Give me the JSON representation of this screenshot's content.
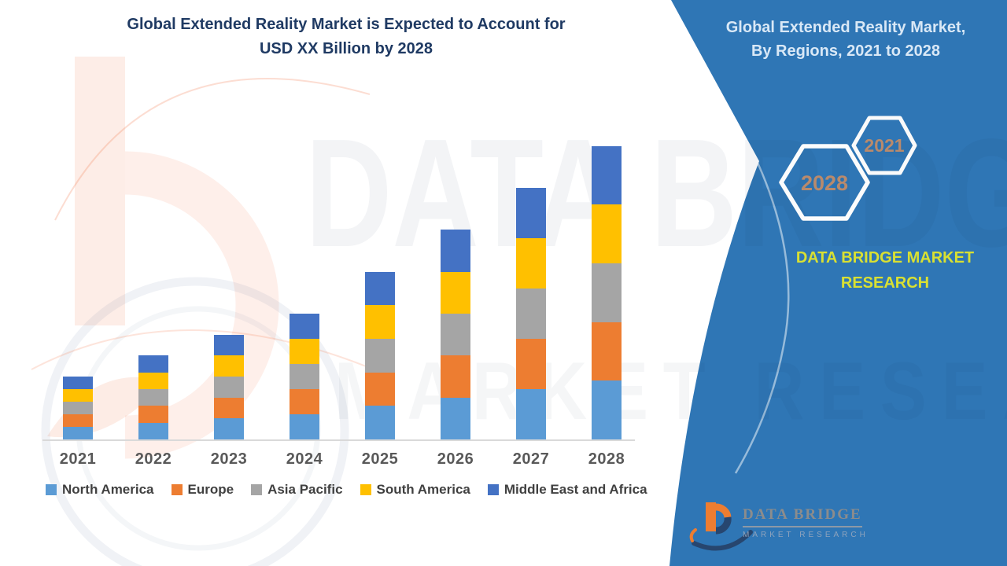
{
  "title": {
    "line1": "Global Extended Reality Market is Expected to Account for",
    "line2": "USD XX Billion by 2028"
  },
  "panel": {
    "title_line1": "Global Extended Reality Market,",
    "title_line2": "By Regions, 2021 to 2028",
    "hexagons": [
      {
        "label": "2028"
      },
      {
        "label": "2021"
      }
    ],
    "brand_line1": "DATA BRIDGE MARKET",
    "brand_line2": "RESEARCH"
  },
  "logo": {
    "name": "DATA BRIDGE",
    "subtitle": "MARKET RESEARCH"
  },
  "watermark": {
    "line1": "DATA BRIDGE",
    "line2": "MARKET RESEARCH"
  },
  "colors": {
    "panel_blue": "#2F76B5",
    "panel_title_text": "#D9E8F6",
    "brand_yellow_green": "#D9E032",
    "hexagon_year_text": "#B98A6C",
    "main_title_navy": "#1F3A63",
    "x_axis_label_gray": "#595959",
    "legend_text_gray": "#404040",
    "axis_line_gray": "#D9D9D9"
  },
  "chart_data": {
    "type": "bar",
    "stacked": true,
    "title": "Global Extended Reality Market is Expected to Account for USD XX Billion by 2028",
    "xlabel": "",
    "ylabel": "",
    "units": "relative index (no value axis shown; values masked as USD XX Billion)",
    "grid": false,
    "legend_position": "bottom",
    "categories": [
      "2021",
      "2022",
      "2023",
      "2024",
      "2025",
      "2026",
      "2027",
      "2028"
    ],
    "series": [
      {
        "name": "North America",
        "color": "#5B9BD5",
        "values": [
          0.3,
          0.4,
          0.5,
          0.6,
          0.8,
          1.0,
          1.2,
          1.4
        ]
      },
      {
        "name": "Europe",
        "color": "#ED7D31",
        "values": [
          0.3,
          0.4,
          0.5,
          0.6,
          0.8,
          1.0,
          1.2,
          1.4
        ]
      },
      {
        "name": "Asia Pacific",
        "color": "#A5A5A5",
        "values": [
          0.3,
          0.4,
          0.5,
          0.6,
          0.8,
          1.0,
          1.2,
          1.4
        ]
      },
      {
        "name": "South America",
        "color": "#FFC000",
        "values": [
          0.3,
          0.4,
          0.5,
          0.6,
          0.8,
          1.0,
          1.2,
          1.4
        ]
      },
      {
        "name": "Middle East and Africa",
        "color": "#4472C4",
        "values": [
          0.3,
          0.4,
          0.5,
          0.6,
          0.8,
          1.0,
          1.2,
          1.4
        ]
      }
    ],
    "stack_totals": [
      1.5,
      2.0,
      2.5,
      3.0,
      4.0,
      5.0,
      6.0,
      7.0
    ],
    "ylim": [
      0,
      7.4
    ]
  }
}
